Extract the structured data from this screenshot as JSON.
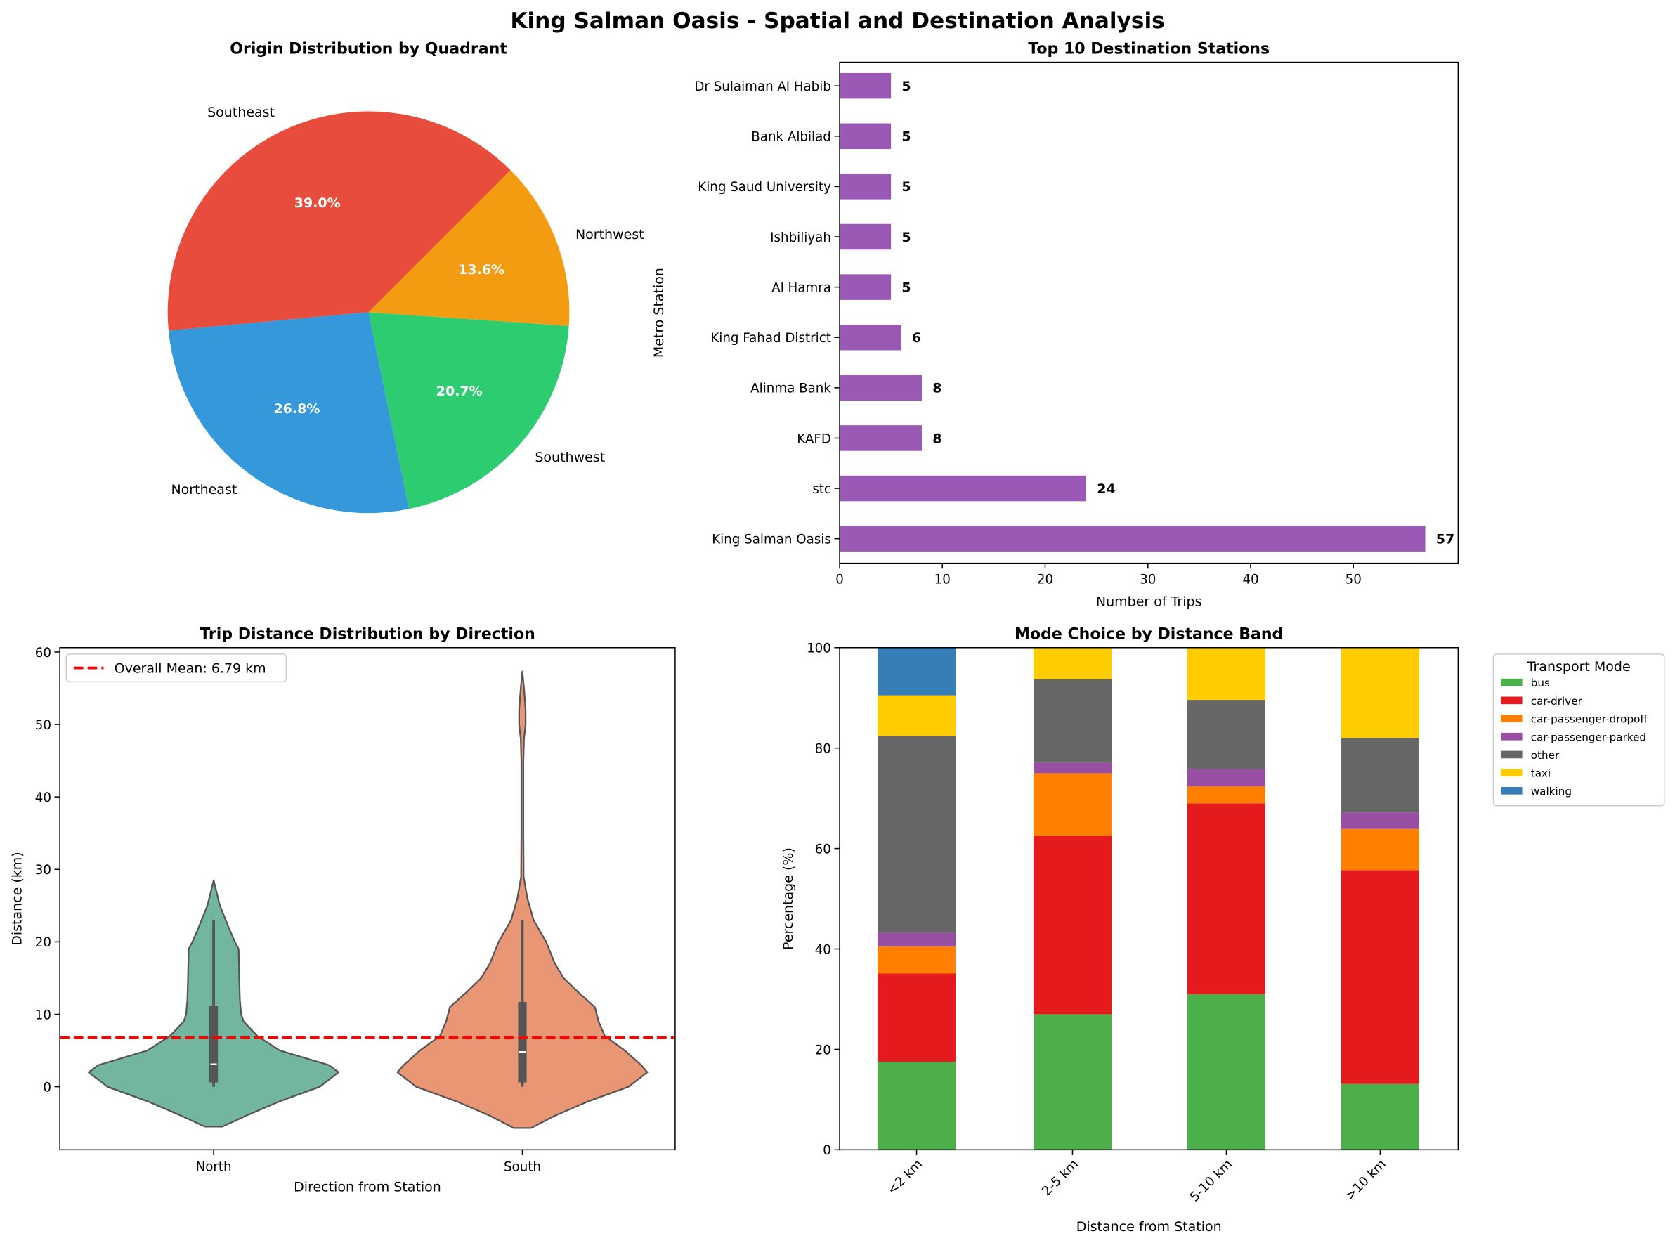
{
  "suptitle": "King Salman Oasis - Spatial and Destination Analysis",
  "chart_data": [
    {
      "type": "pie",
      "title": "Origin Distribution by Quadrant",
      "start_angle": 45,
      "direction": "counterclockwise",
      "slices": [
        {
          "label": "Southeast",
          "value": 39.0,
          "pct_label": "39.0%",
          "color": "#e74c3c"
        },
        {
          "label": "Northeast",
          "value": 26.8,
          "pct_label": "26.8%",
          "color": "#3498db"
        },
        {
          "label": "Southwest",
          "value": 20.7,
          "pct_label": "20.7%",
          "color": "#2ecc71"
        },
        {
          "label": "Northwest",
          "value": 13.6,
          "pct_label": "13.6%",
          "color": "#f39c12"
        }
      ]
    },
    {
      "type": "bar",
      "orientation": "horizontal",
      "title": "Top 10 Destination Stations",
      "xlabel": "Number of Trips",
      "ylabel": "Metro Station",
      "xlim": [
        0,
        60.2
      ],
      "xticks": [
        0,
        10,
        20,
        30,
        40,
        50
      ],
      "color": "#9b59b6",
      "categories": [
        "King Salman Oasis",
        "stc",
        "KAFD",
        "Alinma Bank",
        "King Fahad District",
        "Al Hamra",
        "Ishbiliyah",
        "King Saud University",
        "Bank Albilad",
        "Dr Sulaiman Al Habib"
      ],
      "values": [
        57,
        24,
        8,
        8,
        6,
        5,
        5,
        5,
        5,
        5
      ]
    },
    {
      "type": "violin",
      "title": "Trip Distance Distribution by Direction",
      "xlabel": "Direction from Station",
      "ylabel": "Distance (km)",
      "ylim": [
        -8.7,
        60.6
      ],
      "yticks": [
        0,
        10,
        20,
        30,
        40,
        50,
        60
      ],
      "mean_line": {
        "value": 6.79,
        "label": "Overall Mean: 6.79 km",
        "color": "#ff0000"
      },
      "legend_position": "upper left",
      "groups": [
        {
          "name": "North",
          "color": "#73b6a0",
          "median": 3.1,
          "q1": 0.6,
          "q3": 11.2,
          "whisker_low": 0,
          "whisker_high": 23,
          "density": [
            [
              -5.5,
              0.07
            ],
            [
              -4,
              0.26
            ],
            [
              -2,
              0.53
            ],
            [
              0,
              0.85
            ],
            [
              2,
              1.0
            ],
            [
              3,
              0.92
            ],
            [
              5,
              0.53
            ],
            [
              7,
              0.35
            ],
            [
              9,
              0.24
            ],
            [
              10,
              0.22
            ],
            [
              12,
              0.21
            ],
            [
              15,
              0.205
            ],
            [
              19,
              0.2
            ],
            [
              20,
              0.17
            ],
            [
              22,
              0.12
            ],
            [
              25,
              0.05
            ],
            [
              28.5,
              0
            ]
          ]
        },
        {
          "name": "South",
          "color": "#e99675",
          "median": 4.8,
          "q1": 0.6,
          "q3": 11.7,
          "whisker_low": 0,
          "whisker_high": 23,
          "density": [
            [
              -5.7,
              0.07
            ],
            [
              -4,
              0.26
            ],
            [
              -2,
              0.53
            ],
            [
              0,
              0.85
            ],
            [
              2,
              1.0
            ],
            [
              3,
              0.95
            ],
            [
              5,
              0.82
            ],
            [
              7,
              0.66
            ],
            [
              9,
              0.61
            ],
            [
              11,
              0.58
            ],
            [
              13,
              0.45
            ],
            [
              15,
              0.33
            ],
            [
              17,
              0.26
            ],
            [
              20,
              0.19
            ],
            [
              23,
              0.09
            ],
            [
              26,
              0.04
            ],
            [
              29,
              0.01
            ],
            [
              35,
              0.008
            ],
            [
              45,
              0.008
            ],
            [
              48,
              0.013
            ],
            [
              50,
              0.026
            ],
            [
              52,
              0.026
            ],
            [
              55,
              0.013
            ],
            [
              57.3,
              0
            ]
          ]
        }
      ]
    },
    {
      "type": "bar",
      "stacked": true,
      "title": "Mode Choice by Distance Band",
      "xlabel": "Distance from Station",
      "ylabel": "Percentage (%)",
      "ylim": [
        0,
        100
      ],
      "yticks": [
        0,
        20,
        40,
        60,
        80,
        100
      ],
      "legend_title": "Transport Mode",
      "legend_position": "outside right",
      "categories": [
        "<2 km",
        "2-5 km",
        "5-10 km",
        ">10 km"
      ],
      "series": [
        {
          "name": "bus",
          "color": "#4daf4a",
          "values": [
            17.5,
            27.0,
            31.0,
            13.1
          ]
        },
        {
          "name": "car-driver",
          "color": "#e41a1c",
          "values": [
            17.6,
            35.5,
            38.0,
            42.6
          ]
        },
        {
          "name": "car-passenger-dropoff",
          "color": "#ff7f00",
          "values": [
            5.4,
            12.5,
            3.4,
            8.2
          ]
        },
        {
          "name": "car-passenger-parked",
          "color": "#984ea3",
          "values": [
            2.7,
            2.1,
            3.4,
            3.3
          ]
        },
        {
          "name": "other",
          "color": "#666666",
          "values": [
            39.2,
            16.6,
            13.8,
            14.8
          ]
        },
        {
          "name": "taxi",
          "color": "#ffcc00",
          "values": [
            8.1,
            6.3,
            10.4,
            18.0
          ]
        },
        {
          "name": "walking",
          "color": "#377eb8",
          "values": [
            9.5,
            0,
            0,
            0
          ]
        }
      ]
    }
  ]
}
